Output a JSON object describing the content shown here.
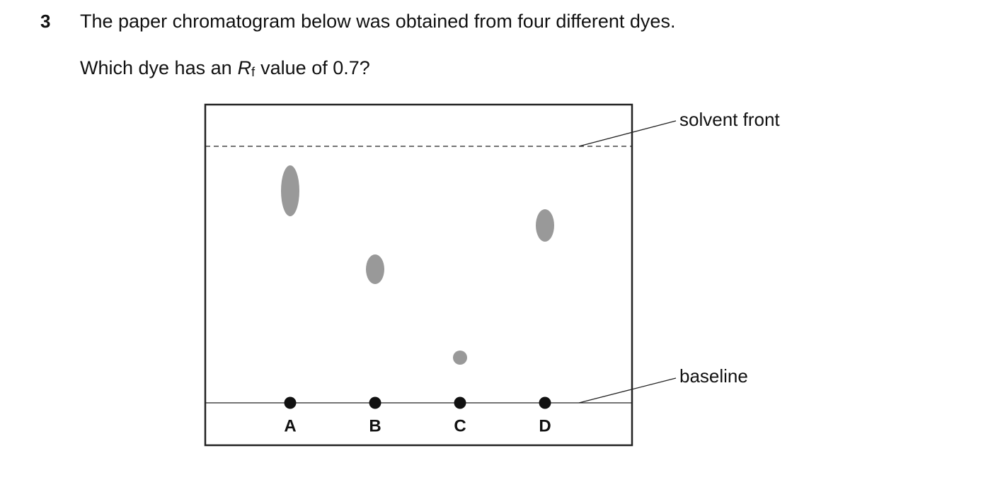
{
  "question": {
    "number": "3",
    "stem": "The paper chromatogram below was obtained from four different dyes.",
    "prompt": {
      "before": "Which dye has an",
      "symbol": "R",
      "subscript": "f",
      "after": "value of 0.7?"
    }
  },
  "diagram": {
    "solvent_front_label": "solvent front",
    "baseline_label": "baseline",
    "dyes": [
      "A",
      "B",
      "C",
      "D"
    ]
  }
}
